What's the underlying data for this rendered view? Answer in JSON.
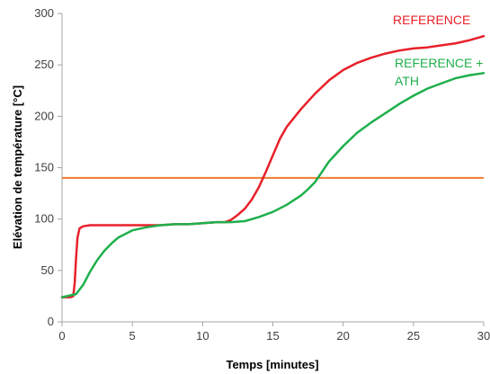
{
  "chart_data": {
    "type": "line",
    "xlabel": "Temps [minutes]",
    "ylabel": "Elévation de température [°C]",
    "xlim": [
      0,
      30
    ],
    "ylim": [
      0,
      300
    ],
    "xticks": [
      "0",
      "5",
      "10",
      "15",
      "20",
      "25",
      "30"
    ],
    "yticks": [
      "0",
      "50",
      "100",
      "150",
      "200",
      "250",
      "300"
    ],
    "grid": false,
    "threshold": {
      "value": 140,
      "color": "#ED7D31"
    },
    "series": [
      {
        "name": "REFERENCE",
        "label_lines": [
          "REFERENCE"
        ],
        "color": "#E8202A",
        "x": [
          0,
          0.6,
          0.8,
          0.9,
          1.0,
          1.1,
          1.25,
          1.5,
          2,
          3,
          4,
          5,
          6,
          7,
          8,
          9,
          10,
          11,
          11.6,
          12,
          12.5,
          13,
          13.5,
          14,
          14.5,
          15,
          15.5,
          16,
          17,
          18,
          19,
          20,
          21,
          22,
          23,
          24,
          25,
          26,
          27,
          28,
          29,
          30
        ],
        "y": [
          24,
          24,
          25,
          38,
          62,
          82,
          91,
          93,
          94,
          94,
          94,
          94,
          94,
          94,
          95,
          95,
          96,
          97,
          97,
          99,
          104,
          110,
          119,
          131,
          146,
          162,
          178,
          190,
          207,
          222,
          235,
          245,
          252,
          257,
          261,
          264,
          266,
          267,
          269,
          271,
          274,
          278
        ]
      },
      {
        "name": "REFERENCE + ATH",
        "label_lines": [
          "REFERENCE +",
          "ATH"
        ],
        "color": "#1FAF4C",
        "x": [
          0,
          1,
          1.5,
          2,
          2.5,
          3,
          3.5,
          4,
          5,
          6,
          7,
          8,
          9,
          10,
          11,
          12,
          13,
          14,
          15,
          16,
          17,
          17.5,
          18,
          18.5,
          19,
          20,
          21,
          22,
          23,
          24,
          25,
          26,
          27,
          28,
          29,
          30
        ],
        "y": [
          24,
          27,
          36,
          49,
          60,
          69,
          76,
          82,
          89,
          92,
          94,
          95,
          95,
          96,
          97,
          97,
          98,
          102,
          107,
          114,
          123,
          129,
          136,
          146,
          156,
          171,
          184,
          194,
          203,
          212,
          220,
          227,
          232,
          237,
          240,
          242
        ]
      }
    ]
  }
}
